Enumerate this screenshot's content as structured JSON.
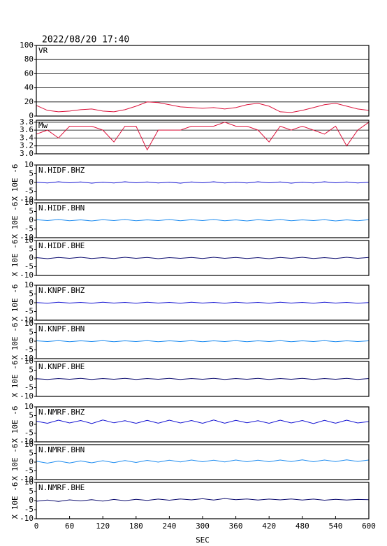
{
  "chart_data": [
    {
      "type": "line",
      "title": "2022/08/20 17:40",
      "xlim": [
        0,
        600
      ],
      "ylim": [
        0,
        100
      ],
      "yticks": [
        0,
        20,
        40,
        60,
        80,
        100
      ],
      "grid": true,
      "x": [
        0,
        20,
        40,
        60,
        80,
        100,
        120,
        140,
        160,
        180,
        200,
        220,
        240,
        260,
        280,
        300,
        320,
        340,
        360,
        380,
        400,
        420,
        440,
        460,
        480,
        500,
        520,
        540,
        560,
        580,
        600
      ],
      "series": [
        {
          "name": "VR",
          "color": "#dc143c",
          "values": [
            15,
            8,
            6,
            7,
            9,
            10,
            7,
            6,
            9,
            14,
            20,
            19,
            16,
            13,
            12,
            11,
            12,
            10,
            12,
            16,
            18,
            14,
            6,
            5,
            8,
            12,
            16,
            18,
            14,
            10,
            8
          ]
        }
      ]
    },
    {
      "type": "line",
      "xlim": [
        0,
        600
      ],
      "ylim": [
        3.0,
        3.85
      ],
      "yticks": [
        {
          "value": 3,
          "label": "3.0"
        },
        3.2,
        3.4,
        3.6,
        3.8
      ],
      "grid": true,
      "x": [
        0,
        20,
        40,
        60,
        80,
        100,
        120,
        140,
        160,
        180,
        200,
        220,
        240,
        260,
        280,
        300,
        320,
        340,
        360,
        380,
        400,
        420,
        440,
        460,
        480,
        500,
        520,
        540,
        560,
        580,
        600
      ],
      "series": [
        {
          "name": "Mw",
          "color": "#dc143c",
          "values": [
            3.5,
            3.6,
            3.4,
            3.7,
            3.7,
            3.7,
            3.6,
            3.3,
            3.7,
            3.7,
            3.1,
            3.6,
            3.6,
            3.6,
            3.7,
            3.7,
            3.7,
            3.8,
            3.7,
            3.7,
            3.6,
            3.3,
            3.7,
            3.6,
            3.7,
            3.6,
            3.5,
            3.7,
            3.2,
            3.6,
            3.8
          ]
        }
      ]
    },
    {
      "type": "line",
      "ylabel": "X 10E -6",
      "xlim": [
        0,
        600
      ],
      "ylim": [
        -10,
        10
      ],
      "yticks": [
        -10,
        -5,
        0,
        5,
        10
      ],
      "grid": false,
      "x": [
        0,
        20,
        40,
        60,
        80,
        100,
        120,
        140,
        160,
        180,
        200,
        220,
        240,
        260,
        280,
        300,
        320,
        340,
        360,
        380,
        400,
        420,
        440,
        460,
        480,
        500,
        520,
        540,
        560,
        580,
        600
      ],
      "series": [
        {
          "name": "N.HIDF.BHZ",
          "color": "#1414d2",
          "values": [
            0.2,
            -0.3,
            0.4,
            -0.2,
            0.3,
            -0.4,
            0.2,
            -0.3,
            0.4,
            -0.2,
            0.3,
            -0.3,
            0.2,
            -0.4,
            0.3,
            -0.2,
            0.4,
            -0.3,
            0.2,
            -0.3,
            0.4,
            -0.2,
            0.3,
            -0.4,
            0.2,
            -0.3,
            0.4,
            -0.2,
            0.3,
            -0.3,
            0.2
          ]
        }
      ]
    },
    {
      "type": "line",
      "ylabel": "X 10E -6",
      "xlim": [
        0,
        600
      ],
      "ylim": [
        -10,
        10
      ],
      "yticks": [
        -10,
        -5,
        0,
        5,
        10
      ],
      "grid": false,
      "x": [
        0,
        20,
        40,
        60,
        80,
        100,
        120,
        140,
        160,
        180,
        200,
        220,
        240,
        260,
        280,
        300,
        320,
        340,
        360,
        380,
        400,
        420,
        440,
        460,
        480,
        500,
        520,
        540,
        560,
        580,
        600
      ],
      "series": [
        {
          "name": "N.HIDF.BHN",
          "color": "#1e8cf0",
          "values": [
            0.3,
            -0.2,
            0.4,
            -0.3,
            0.2,
            -0.4,
            0.3,
            -0.2,
            0.4,
            -0.3,
            0.2,
            -0.2,
            0.4,
            -0.3,
            0.3,
            -0.2,
            0.4,
            -0.3,
            0.2,
            -0.4,
            0.3,
            -0.2,
            0.4,
            -0.3,
            0.2,
            -0.2,
            0.3,
            -0.4,
            0.2,
            -0.3,
            0.3
          ]
        }
      ]
    },
    {
      "type": "line",
      "ylabel": "X 10E -6",
      "xlim": [
        0,
        600
      ],
      "ylim": [
        -10,
        10
      ],
      "yticks": [
        -10,
        -5,
        0,
        5,
        10
      ],
      "grid": false,
      "x": [
        0,
        20,
        40,
        60,
        80,
        100,
        120,
        140,
        160,
        180,
        200,
        220,
        240,
        260,
        280,
        300,
        320,
        340,
        360,
        380,
        400,
        420,
        440,
        460,
        480,
        500,
        520,
        540,
        560,
        580,
        600
      ],
      "series": [
        {
          "name": "N.HIDF.BHE",
          "color": "#0a0a6e",
          "values": [
            0.2,
            -0.4,
            0.3,
            -0.2,
            0.4,
            -0.3,
            0.2,
            -0.3,
            0.4,
            -0.2,
            0.3,
            -0.4,
            0.2,
            -0.2,
            0.3,
            -0.3,
            0.4,
            -0.2,
            0.3,
            -0.3,
            0.2,
            -0.4,
            0.3,
            -0.2,
            0.4,
            -0.3,
            0.2,
            -0.3,
            0.4,
            -0.2,
            0.3
          ]
        }
      ]
    },
    {
      "type": "line",
      "ylabel": "X 10E -6",
      "xlim": [
        0,
        600
      ],
      "ylim": [
        -10,
        10
      ],
      "yticks": [
        -10,
        -5,
        0,
        5,
        10
      ],
      "grid": false,
      "x": [
        0,
        20,
        40,
        60,
        80,
        100,
        120,
        140,
        160,
        180,
        200,
        220,
        240,
        260,
        280,
        300,
        320,
        340,
        360,
        380,
        400,
        420,
        440,
        460,
        480,
        500,
        520,
        540,
        560,
        580,
        600
      ],
      "series": [
        {
          "name": "N.KNPF.BHZ",
          "color": "#1414d2",
          "values": [
            0.1,
            -0.3,
            0.3,
            -0.2,
            0.2,
            -0.3,
            0.3,
            -0.2,
            0.2,
            -0.3,
            0.3,
            -0.2,
            0.2,
            -0.3,
            0.3,
            -0.2,
            0.2,
            -0.3,
            0.3,
            -0.2,
            0.2,
            -0.3,
            0.3,
            -0.2,
            0.2,
            -0.3,
            0.3,
            -0.2,
            0.2,
            -0.3,
            0.1
          ]
        }
      ]
    },
    {
      "type": "line",
      "ylabel": "X 10E -6",
      "xlim": [
        0,
        600
      ],
      "ylim": [
        -10,
        10
      ],
      "yticks": [
        -10,
        -5,
        0,
        5,
        10
      ],
      "grid": false,
      "x": [
        0,
        20,
        40,
        60,
        80,
        100,
        120,
        140,
        160,
        180,
        200,
        220,
        240,
        260,
        280,
        300,
        320,
        340,
        360,
        380,
        400,
        420,
        440,
        460,
        480,
        500,
        520,
        540,
        560,
        580,
        600
      ],
      "series": [
        {
          "name": "N.KNPF.BHN",
          "color": "#1e8cf0",
          "values": [
            0.2,
            -0.2,
            0.3,
            -0.3,
            0.2,
            -0.2,
            0.3,
            -0.3,
            0.2,
            -0.2,
            0.3,
            -0.3,
            0.2,
            -0.2,
            0.3,
            -0.3,
            0.2,
            -0.2,
            0.3,
            -0.3,
            0.2,
            -0.2,
            0.3,
            -0.3,
            0.2,
            -0.2,
            0.3,
            -0.3,
            0.2,
            -0.2,
            0.2
          ]
        }
      ]
    },
    {
      "type": "line",
      "ylabel": "X 10E -6",
      "xlim": [
        0,
        600
      ],
      "ylim": [
        -10,
        10
      ],
      "yticks": [
        -10,
        -5,
        0,
        5,
        10
      ],
      "grid": false,
      "x": [
        0,
        20,
        40,
        60,
        80,
        100,
        120,
        140,
        160,
        180,
        200,
        220,
        240,
        260,
        280,
        300,
        320,
        340,
        360,
        380,
        400,
        420,
        440,
        460,
        480,
        500,
        520,
        540,
        560,
        580,
        600
      ],
      "series": [
        {
          "name": "N.KNPF.BHE",
          "color": "#0a0a6e",
          "values": [
            0.1,
            -0.3,
            0.2,
            -0.2,
            0.3,
            -0.3,
            0.2,
            -0.2,
            0.3,
            -0.3,
            0.2,
            -0.2,
            0.3,
            -0.3,
            0.2,
            -0.2,
            0.3,
            -0.3,
            0.2,
            -0.2,
            0.3,
            -0.3,
            0.2,
            -0.2,
            0.3,
            -0.3,
            0.2,
            -0.2,
            0.3,
            -0.3,
            0.2
          ]
        }
      ]
    },
    {
      "type": "line",
      "ylabel": "X 10E -6",
      "xlim": [
        0,
        600
      ],
      "ylim": [
        -10,
        10
      ],
      "yticks": [
        -10,
        -5,
        0,
        5,
        10
      ],
      "grid": false,
      "x": [
        0,
        20,
        40,
        60,
        80,
        100,
        120,
        140,
        160,
        180,
        200,
        220,
        240,
        260,
        280,
        300,
        320,
        340,
        360,
        380,
        400,
        420,
        440,
        460,
        480,
        500,
        520,
        540,
        560,
        580,
        600
      ],
      "series": [
        {
          "name": "N.NMRF.BHZ",
          "color": "#1414d2",
          "values": [
            1.8,
            0.6,
            2.4,
            0.8,
            2.2,
            0.5,
            2.5,
            0.9,
            2.1,
            0.6,
            2.3,
            0.7,
            2.4,
            0.8,
            2.2,
            0.6,
            2.5,
            0.7,
            2.3,
            0.9,
            2.1,
            0.6,
            2.4,
            0.8,
            2.2,
            0.5,
            2.3,
            0.7,
            2.4,
            0.8,
            1.6
          ]
        }
      ]
    },
    {
      "type": "line",
      "ylabel": "X 10E -6",
      "xlim": [
        0,
        600
      ],
      "ylim": [
        -10,
        10
      ],
      "yticks": [
        -10,
        -5,
        0,
        5,
        10
      ],
      "grid": false,
      "x": [
        0,
        20,
        40,
        60,
        80,
        100,
        120,
        140,
        160,
        180,
        200,
        220,
        240,
        260,
        280,
        300,
        320,
        340,
        360,
        380,
        400,
        420,
        440,
        460,
        480,
        500,
        520,
        540,
        560,
        580,
        600
      ],
      "series": [
        {
          "name": "N.NMRF.BHN",
          "color": "#1e8cf0",
          "values": [
            0.5,
            -0.6,
            0.6,
            -0.5,
            0.7,
            -0.4,
            0.8,
            -0.3,
            0.9,
            -0.2,
            1.0,
            0.0,
            1.1,
            0.1,
            1.2,
            0.2,
            1.1,
            0.1,
            1.2,
            0.2,
            1.1,
            0.2,
            1.2,
            0.3,
            1.3,
            0.2,
            1.2,
            0.3,
            1.3,
            0.4,
            1.2
          ]
        }
      ]
    },
    {
      "type": "line",
      "ylabel": "X 10E -6",
      "xlabel": "SEC",
      "xlim": [
        0,
        600
      ],
      "ylim": [
        -10,
        10
      ],
      "yticks": [
        -10,
        -5,
        0,
        5,
        10
      ],
      "xticks": [
        0,
        60,
        120,
        180,
        240,
        300,
        360,
        420,
        480,
        540,
        600
      ],
      "grid": false,
      "x": [
        0,
        20,
        40,
        60,
        80,
        100,
        120,
        140,
        160,
        180,
        200,
        220,
        240,
        260,
        280,
        300,
        320,
        340,
        360,
        380,
        400,
        420,
        440,
        460,
        480,
        500,
        520,
        540,
        560,
        580,
        600
      ],
      "series": [
        {
          "name": "N.NMRF.BHE",
          "color": "#0a0a6e",
          "values": [
            -0.4,
            0.3,
            -0.5,
            0.4,
            -0.2,
            0.5,
            -0.3,
            0.6,
            -0.1,
            0.7,
            0.1,
            0.8,
            0.2,
            0.9,
            0.4,
            1.0,
            0.3,
            1.1,
            0.5,
            0.9,
            0.3,
            0.8,
            0.4,
            0.9,
            0.3,
            0.8,
            0.2,
            0.7,
            0.3,
            0.6,
            0.5
          ]
        }
      ]
    }
  ]
}
